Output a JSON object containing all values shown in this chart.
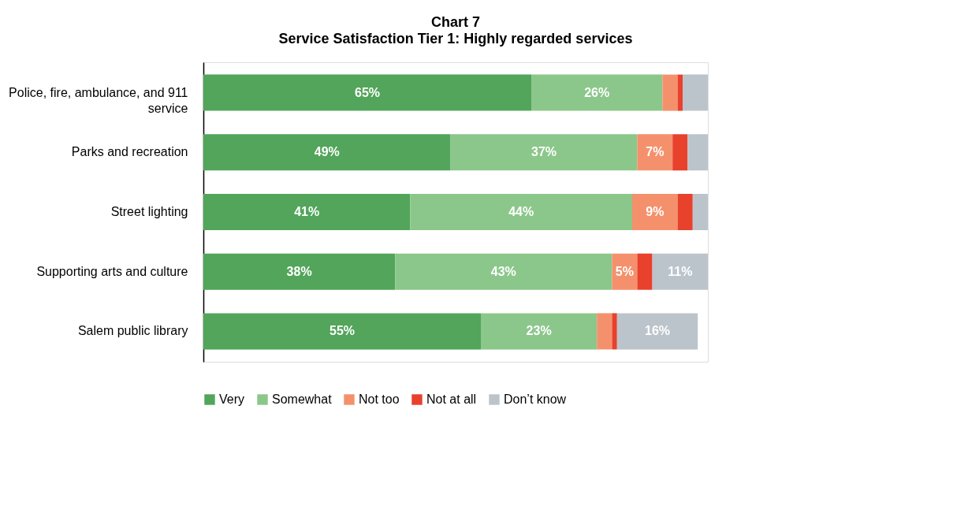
{
  "chart_data": {
    "type": "bar",
    "orientation": "horizontal",
    "stacked": true,
    "title": "Chart 7",
    "subtitle": "Service Satisfaction Tier 1: Highly regarded services",
    "categories": [
      "Police, fire, ambulance, and 911 service",
      "Parks and recreation",
      "Street lighting",
      "Supporting arts and culture",
      "Salem public library"
    ],
    "xlim": [
      0,
      100
    ],
    "legend": "bottom",
    "grid": false,
    "tick_labels": "y",
    "series": [
      {
        "name": "Very",
        "color": "#52a55a",
        "values": [
          65,
          49,
          41,
          38,
          55
        ],
        "value_labels": [
          "65%",
          "49%",
          "41%",
          "38%",
          "55%"
        ]
      },
      {
        "name": "Somewhat",
        "color": "#8bc78a",
        "values": [
          26,
          37,
          44,
          43,
          23
        ],
        "value_labels": [
          "26%",
          "37%",
          "44%",
          "43%",
          "23%"
        ]
      },
      {
        "name": "Not too",
        "color": "#f4916c",
        "values": [
          3,
          7,
          9,
          5,
          3
        ],
        "value_labels": [
          null,
          "7%",
          "9%",
          "5%",
          null
        ]
      },
      {
        "name": "Not at all",
        "color": "#e8412c",
        "values": [
          1,
          3,
          3,
          3,
          1
        ],
        "value_labels": [
          null,
          null,
          null,
          null,
          null
        ]
      },
      {
        "name": "Don’t know",
        "color": "#bcc4cb",
        "values": [
          5,
          4,
          3,
          11,
          16
        ],
        "value_labels": [
          null,
          null,
          null,
          "11%",
          "16%"
        ]
      }
    ]
  }
}
